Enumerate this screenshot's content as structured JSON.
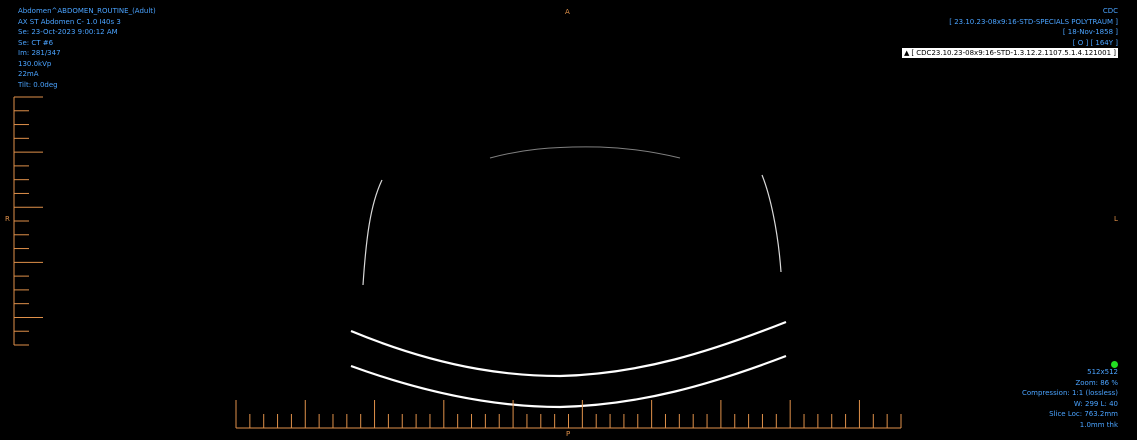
{
  "viewer": {
    "top_left": {
      "study": "Abdomen^ABDOMEN_ROUTINE_(Adult)",
      "series_desc": "AX ST Abdomen C-  1.0  I40s  3",
      "series_datetime": "Se: 23-Oct-2023 9:00:12 AM",
      "series_number": "Se: CT #6",
      "image_index": "Im: 281/347",
      "kvp": "130.0kVp",
      "ma": "22mA",
      "tilt": "Tilt: 0.0deg"
    },
    "top_right": {
      "institution": "CDC",
      "patient_name": "[ 23.10.23-08x9:16-STD-SPECIALS POLYTRAUM ]",
      "birth_date": "[ 18-Nov-1858 ]",
      "sex_age": "[ O ] [ 164Y ]",
      "study_uid": "[ CDC23.10.23-08x9:16-STD-1.3.12.2.1107.5.1.4.121001 ]",
      "warning_icon": "warning-triangle-icon"
    },
    "bottom_right": {
      "matrix": "512x512",
      "zoom": "Zoom: 86 %",
      "compression": "Compression: 1:1 (lossless)",
      "window": "W: 299 L: 40",
      "slice_location": "Slice Loc: 763.2mm",
      "thickness": "1.0mm thk"
    },
    "orientation": {
      "anterior": "A",
      "posterior": "P",
      "right": "R",
      "left": "L"
    },
    "colors": {
      "overlay_text": "#4aa3ff",
      "orientation_marker": "#e0914a",
      "ruler": "#e0914a",
      "status_dot": "#22dd22",
      "image_outline": "#ffffff"
    }
  }
}
